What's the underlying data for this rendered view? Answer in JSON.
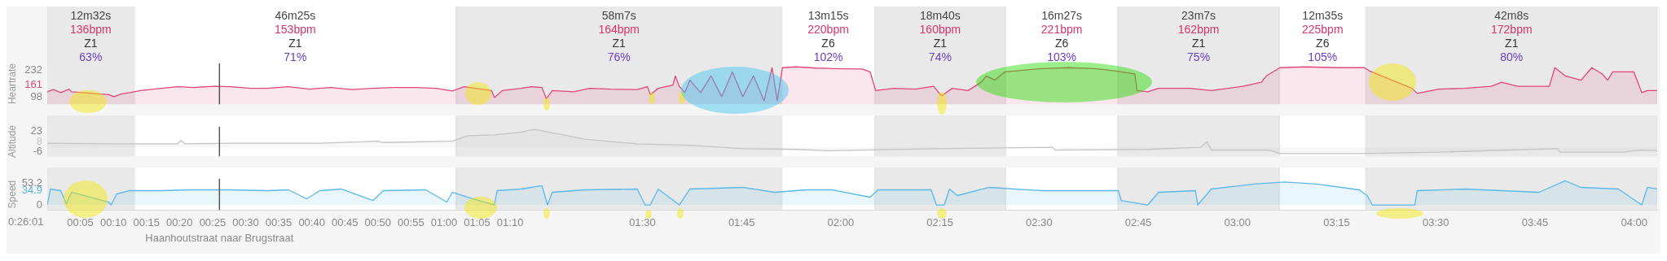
{
  "chart_data": [
    {
      "type": "area",
      "xlim": [
        0,
        4.058
      ],
      "tick_labels": "y",
      "ylabel": "Heartrate",
      "ylim": [
        65,
        265
      ],
      "yticks": [
        98,
        161,
        232
      ],
      "series": [
        {
          "color": "#e0457b",
          "x": [
            0,
            0.015,
            0.034,
            0.055,
            0.061,
            0.155,
            0.168,
            0.188,
            0.208,
            0.235,
            0.288,
            0.328,
            0.368,
            0.421,
            0.461,
            0.514,
            0.554,
            0.608,
            0.661,
            0.714,
            0.767,
            0.821,
            0.874,
            0.927,
            0.98,
            1.021,
            1.051,
            1.12,
            1.127,
            1.147,
            1.194,
            1.22,
            1.247,
            1.258,
            1.273,
            1.327,
            1.367,
            1.42,
            1.487,
            1.513,
            1.52,
            1.54,
            1.577,
            1.583,
            1.593,
            1.607,
            1.62,
            1.647,
            1.673,
            1.7,
            1.727,
            1.753,
            1.78,
            1.807,
            1.827,
            1.84,
            1.853,
            1.887,
            1.94,
            1.977,
            2.054,
            2.074,
            2.088,
            2.134,
            2.187,
            2.234,
            2.254,
            2.281,
            2.321,
            2.354,
            2.367,
            2.388,
            2.414,
            2.507,
            2.574,
            2.641,
            2.694,
            2.741,
            2.747,
            2.774,
            2.801,
            2.88,
            2.934,
            3.014,
            3.06,
            3.073,
            3.107,
            3.174,
            3.254,
            3.32,
            3.333,
            3.44,
            3.453,
            3.507,
            3.573,
            3.64,
            3.666,
            3.706,
            3.786,
            3.8,
            3.826,
            3.866,
            3.893,
            3.919,
            3.933,
            3.946,
            3.999,
            4.019,
            4.033,
            4.058
          ],
          "values": [
            126,
            137,
            122,
            139,
            126,
            112,
            102,
            116,
            122,
            132,
            143,
            151,
            147,
            153,
            151,
            143,
            143,
            151,
            139,
            147,
            137,
            143,
            147,
            147,
            143,
            130,
            151,
            132,
            98,
            132,
            143,
            151,
            147,
            92,
            132,
            126,
            143,
            139,
            137,
            151,
            112,
            143,
            159,
            204,
            153,
            122,
            183,
            122,
            204,
            102,
            224,
            102,
            204,
            82,
            244,
            82,
            244,
            248,
            242,
            240,
            238,
            224,
            132,
            143,
            139,
            153,
            106,
            143,
            132,
            173,
            204,
            183,
            224,
            240,
            244,
            240,
            228,
            214,
            132,
            126,
            143,
            143,
            132,
            153,
            173,
            204,
            244,
            248,
            244,
            244,
            228,
            143,
            118,
            139,
            143,
            153,
            173,
            153,
            153,
            244,
            204,
            183,
            244,
            214,
            183,
            224,
            224,
            122,
            132,
            132
          ]
        }
      ],
      "bands": [
        {
          "axis": "x",
          "from": 0,
          "to": 0.219,
          "color": "#e9e9e9",
          "label": "12m32s\n136bpm\nZ1\n63%"
        },
        {
          "axis": "x",
          "from": 0.219,
          "to": 1.031,
          "color": "#ffffff",
          "label": "46m25s\n153bpm\nZ1\n71%"
        },
        {
          "axis": "x",
          "from": 1.031,
          "to": 1.851,
          "color": "#e9e9e9",
          "label": "58m7s\n164bpm\nZ1\n76%"
        },
        {
          "axis": "x",
          "from": 1.851,
          "to": 2.086,
          "color": "#ffffff",
          "label": "13m15s\n220bpm\nZ6\n102%"
        },
        {
          "axis": "x",
          "from": 2.086,
          "to": 2.415,
          "color": "#e9e9e9",
          "label": "18m40s\n160bpm\nZ1\n74%"
        },
        {
          "axis": "x",
          "from": 2.415,
          "to": 2.699,
          "color": "#ffffff",
          "label": "16m27s\n221bpm\nZ6\n103%"
        },
        {
          "axis": "x",
          "from": 2.699,
          "to": 3.105,
          "color": "#e9e9e9",
          "label": "23m7s\n162bpm\nZ1\n75%"
        },
        {
          "axis": "x",
          "from": 3.105,
          "to": 3.324,
          "color": "#ffffff",
          "label": "12m35s\n225bpm\nZ6\n105%"
        },
        {
          "axis": "x",
          "from": 3.324,
          "to": 4.058,
          "color": "#e9e9e9",
          "label": "42m8s\n172bpm\nZ1\n80%"
        }
      ],
      "ref_lines": [
        {
          "axis": "x",
          "value": 0.434,
          "color": "#555555"
        }
      ]
    },
    {
      "type": "area",
      "xlim": [
        0,
        4.058
      ],
      "tick_labels": "y",
      "ylabel": "Altitude",
      "ylim": [
        -13,
        30
      ],
      "yticks": [
        -6,
        8,
        23
      ],
      "series": [
        {
          "color": "#c4c4c4",
          "x": [
            0,
            0.155,
            0.328,
            0.337,
            0.348,
            0.461,
            0.687,
            0.834,
            0.847,
            1.021,
            1.06,
            1.127,
            1.194,
            1.227,
            1.247,
            1.3,
            1.354,
            1.487,
            1.62,
            1.753,
            1.887,
            1.977,
            2.241,
            2.534,
            2.54,
            2.774,
            2.907,
            2.923,
            2.934,
            3.08,
            3.107,
            3.307,
            3.507,
            3.806,
            3.813,
            3.973,
            4.013,
            4.058
          ],
          "values": [
            6,
            5,
            5,
            10,
            5,
            6,
            6,
            9,
            7,
            9,
            17,
            18,
            22,
            26,
            24,
            18,
            12,
            5,
            3,
            -2,
            -3,
            -5,
            -2,
            0,
            -4,
            -3,
            0,
            8,
            -4,
            -4,
            -9,
            -9,
            -7,
            -2,
            -7,
            -7,
            -4,
            -5
          ]
        }
      ],
      "bands": [
        {
          "axis": "x",
          "from": 0,
          "to": 0.219,
          "color": "#e9e9e9"
        },
        {
          "axis": "x",
          "from": 0.219,
          "to": 1.031,
          "color": "#ffffff"
        },
        {
          "axis": "x",
          "from": 1.031,
          "to": 1.851,
          "color": "#e9e9e9"
        },
        {
          "axis": "x",
          "from": 1.851,
          "to": 2.086,
          "color": "#ffffff"
        },
        {
          "axis": "x",
          "from": 2.086,
          "to": 2.415,
          "color": "#e9e9e9"
        },
        {
          "axis": "x",
          "from": 2.415,
          "to": 2.699,
          "color": "#ffffff"
        },
        {
          "axis": "x",
          "from": 2.699,
          "to": 3.105,
          "color": "#e9e9e9"
        },
        {
          "axis": "x",
          "from": 3.105,
          "to": 3.324,
          "color": "#ffffff"
        },
        {
          "axis": "x",
          "from": 3.324,
          "to": 4.058,
          "color": "#e9e9e9"
        }
      ],
      "ref_lines": [
        {
          "axis": "x",
          "value": 0.434,
          "color": "#555555"
        }
      ]
    },
    {
      "type": "area",
      "xlim": [
        0,
        4.058
      ],
      "xticks": [
        {
          "value": 0.0833,
          "label": "00:05"
        },
        {
          "value": 0.1667,
          "label": "00:10"
        },
        {
          "value": 0.25,
          "label": "00:15"
        },
        {
          "value": 0.3333,
          "label": "00:20"
        },
        {
          "value": 0.4167,
          "label": "00:25"
        },
        {
          "value": 0.5,
          "label": "00:30"
        },
        {
          "value": 0.5833,
          "label": "00:35"
        },
        {
          "value": 0.6667,
          "label": "00:40"
        },
        {
          "value": 0.75,
          "label": "00:45"
        },
        {
          "value": 0.8333,
          "label": "00:50"
        },
        {
          "value": 0.9167,
          "label": "00:55"
        },
        {
          "value": 1,
          "label": "01:00"
        },
        {
          "value": 1.0833,
          "label": "01:05"
        },
        {
          "value": 1.1667,
          "label": "01:10"
        },
        {
          "value": 1.5,
          "label": "01:30"
        },
        {
          "value": 1.75,
          "label": "01:45"
        },
        {
          "value": 2,
          "label": "02:00"
        },
        {
          "value": 2.25,
          "label": "02:15"
        },
        {
          "value": 2.5,
          "label": "02:30"
        },
        {
          "value": 2.75,
          "label": "02:45"
        },
        {
          "value": 3,
          "label": "03:00"
        },
        {
          "value": 3.25,
          "label": "03:15"
        },
        {
          "value": 3.5,
          "label": "03:30"
        },
        {
          "value": 3.75,
          "label": "03:45"
        },
        {
          "value": 4,
          "label": "04:00"
        }
      ],
      "ylabel": "Speed",
      "ylim": [
        -12.7,
        64.3
      ],
      "yticks": [
        0,
        34.9,
        53.2
      ],
      "series": [
        {
          "color": "#5bb8e8",
          "x": [
            0,
            0.008,
            0.034,
            0.048,
            0.061,
            0.155,
            0.161,
            0.175,
            0.208,
            0.288,
            0.354,
            0.421,
            0.461,
            0.554,
            0.608,
            0.654,
            0.687,
            0.741,
            0.821,
            0.847,
            0.954,
            1.007,
            1.021,
            1.06,
            1.127,
            1.134,
            1.194,
            1.247,
            1.261,
            1.273,
            1.354,
            1.487,
            1.507,
            1.52,
            1.54,
            1.593,
            1.62,
            1.753,
            1.833,
            1.913,
            1.977,
            2.074,
            2.094,
            2.228,
            2.241,
            2.261,
            2.274,
            2.294,
            2.374,
            2.507,
            2.7,
            2.707,
            2.774,
            2.801,
            2.894,
            2.9,
            2.934,
            3.04,
            3.12,
            3.2,
            3.307,
            3.327,
            3.34,
            3.447,
            3.453,
            3.573,
            3.76,
            3.826,
            3.866,
            3.96,
            4.019,
            4.033,
            4.058
          ],
          "values": [
            0,
            39,
            35,
            3,
            31,
            7,
            0,
            27,
            35,
            35,
            37,
            37,
            37,
            35,
            37,
            15,
            35,
            39,
            11,
            35,
            37,
            7,
            31,
            19,
            0,
            35,
            39,
            47,
            0,
            31,
            37,
            39,
            0,
            0,
            39,
            0,
            39,
            43,
            31,
            37,
            37,
            19,
            37,
            37,
            0,
            0,
            39,
            23,
            43,
            35,
            35,
            11,
            0,
            31,
            35,
            0,
            39,
            51,
            56,
            51,
            37,
            23,
            0,
            0,
            35,
            39,
            31,
            59,
            43,
            39,
            0,
            43,
            39
          ]
        }
      ],
      "bands": [
        {
          "axis": "x",
          "from": 0,
          "to": 0.219,
          "color": "#e9e9e9"
        },
        {
          "axis": "x",
          "from": 0.219,
          "to": 1.031,
          "color": "#ffffff"
        },
        {
          "axis": "x",
          "from": 1.031,
          "to": 1.851,
          "color": "#e9e9e9"
        },
        {
          "axis": "x",
          "from": 1.851,
          "to": 2.086,
          "color": "#ffffff"
        },
        {
          "axis": "x",
          "from": 2.086,
          "to": 2.415,
          "color": "#e9e9e9"
        },
        {
          "axis": "x",
          "from": 2.415,
          "to": 2.699,
          "color": "#ffffff"
        },
        {
          "axis": "x",
          "from": 2.699,
          "to": 3.105,
          "color": "#e9e9e9"
        },
        {
          "axis": "x",
          "from": 3.105,
          "to": 3.324,
          "color": "#ffffff"
        },
        {
          "axis": "x",
          "from": 3.324,
          "to": 4.058,
          "color": "#e9e9e9"
        }
      ],
      "ref_lines": [
        {
          "axis": "x",
          "value": 0.434,
          "color": "#555555"
        }
      ],
      "annotations": [
        "0:26:01",
        "Haanhoutstraat naar Brugstraat"
      ]
    }
  ]
}
